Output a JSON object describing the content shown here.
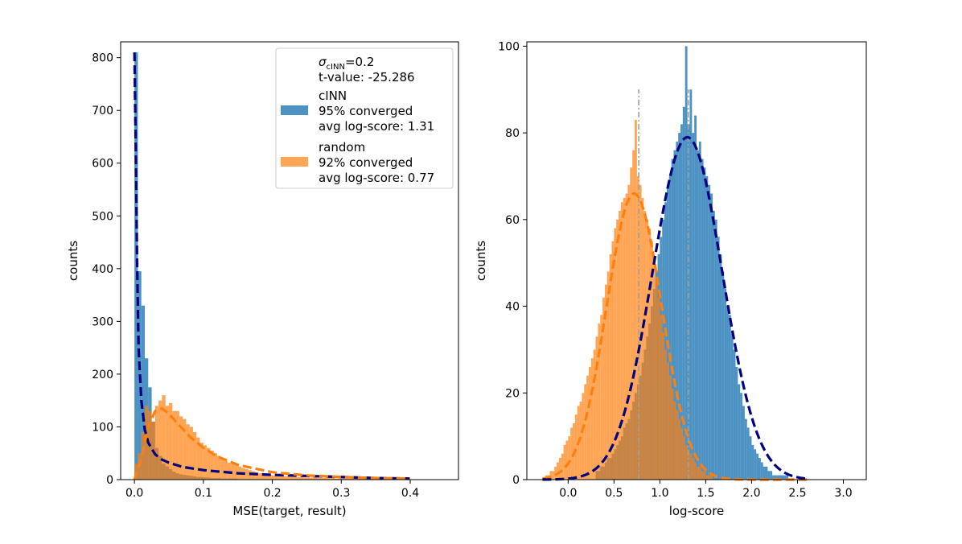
{
  "chart_data": [
    {
      "type": "histogram",
      "xlabel": "MSE(target, result)",
      "ylabel": "counts",
      "xlim": [
        -0.02,
        0.47
      ],
      "ylim": [
        0,
        830
      ],
      "xticks": [
        0.0,
        0.1,
        0.2,
        0.3,
        0.4
      ],
      "xtick_labels": [
        "0.0",
        "0.1",
        "0.2",
        "0.3",
        "0.4"
      ],
      "yticks": [
        0,
        100,
        200,
        300,
        400,
        500,
        600,
        700,
        800
      ],
      "ytick_labels": [
        "0",
        "100",
        "200",
        "300",
        "400",
        "500",
        "600",
        "700",
        "800"
      ],
      "legend": {
        "position": "top-right",
        "sigma_label": "σ",
        "sigma_sub": "cINN",
        "sigma_value": "=0.2",
        "t_value": "t-value: -25.286",
        "entries": [
          {
            "name": "cINN",
            "line2": "95% converged",
            "line3": "avg log-score: 1.31",
            "color": "#1f77b4"
          },
          {
            "name": "random",
            "line2": "92% converged",
            "line3": "avg log-score: 0.77",
            "color": "#ff7f0e"
          }
        ]
      },
      "series": [
        {
          "name": "cINN",
          "color": "#1f77b4",
          "bin_width": 0.005,
          "bin_start": 0.0,
          "counts": [
            810,
            395,
            330,
            230,
            175,
            110,
            60,
            45,
            30,
            25,
            20,
            15,
            12,
            10,
            9,
            8,
            7,
            6,
            5,
            5,
            4,
            4,
            3,
            3,
            3,
            2,
            2,
            2,
            2,
            2,
            1,
            1,
            1,
            1,
            1,
            1,
            1,
            1,
            1,
            1,
            1,
            1,
            1,
            1,
            1,
            1,
            1,
            1,
            1,
            1,
            1,
            1,
            1,
            1,
            1,
            1,
            1,
            1,
            1,
            1,
            1,
            1,
            1,
            1,
            1,
            1,
            1,
            1,
            1,
            1,
            1,
            1,
            1,
            1,
            1,
            1,
            1,
            1,
            1,
            1
          ]
        },
        {
          "name": "random",
          "color": "#ff7f0e",
          "bin_width": 0.005,
          "bin_start": 0.0,
          "counts": [
            30,
            50,
            90,
            140,
            130,
            110,
            140,
            150,
            160,
            140,
            145,
            130,
            130,
            120,
            115,
            105,
            100,
            90,
            80,
            70,
            65,
            60,
            55,
            50,
            45,
            40,
            35,
            32,
            30,
            28,
            25,
            22,
            20,
            18,
            16,
            14,
            12,
            11,
            10,
            9,
            8,
            8,
            7,
            7,
            6,
            6,
            5,
            5,
            5,
            4,
            4,
            4,
            4,
            3,
            3,
            3,
            3,
            3,
            2,
            2,
            2,
            2,
            2,
            2,
            2,
            2,
            2,
            2,
            1,
            1,
            1,
            1,
            1,
            1,
            1,
            1,
            1,
            1,
            1,
            1
          ]
        }
      ],
      "fits": [
        {
          "name": "cINN fit",
          "color": "#000080",
          "x": [
            0.0,
            0.002,
            0.004,
            0.006,
            0.01,
            0.015,
            0.02,
            0.03,
            0.04,
            0.05,
            0.07,
            0.1,
            0.15,
            0.2,
            0.25,
            0.3,
            0.35,
            0.4
          ],
          "y": [
            810,
            620,
            400,
            250,
            150,
            95,
            70,
            48,
            38,
            32,
            24,
            18,
            12,
            9,
            7,
            5,
            3,
            2
          ]
        },
        {
          "name": "random fit",
          "color": "#ff7f0e",
          "x": [
            0.0,
            0.01,
            0.02,
            0.03,
            0.04,
            0.05,
            0.06,
            0.08,
            0.1,
            0.12,
            0.15,
            0.2,
            0.25,
            0.3,
            0.35,
            0.4
          ],
          "y": [
            0,
            40,
            100,
            130,
            135,
            125,
            110,
            82,
            60,
            44,
            28,
            14,
            8,
            5,
            3,
            2
          ]
        }
      ]
    },
    {
      "type": "histogram",
      "xlabel": "log-score",
      "ylabel": "counts",
      "xlim": [
        -0.45,
        3.25
      ],
      "ylim": [
        0,
        101
      ],
      "xticks": [
        0.0,
        0.5,
        1.0,
        1.5,
        2.0,
        2.5,
        3.0
      ],
      "xtick_labels": [
        "0.0",
        "0.5",
        "1.0",
        "1.5",
        "2.0",
        "2.5",
        "3.0"
      ],
      "yticks": [
        0,
        20,
        40,
        60,
        80,
        100
      ],
      "ytick_labels": [
        "0",
        "20",
        "40",
        "60",
        "80",
        "100"
      ],
      "mean_lines": [
        {
          "name": "random mean",
          "x": 0.77,
          "ymax": 90
        },
        {
          "name": "cINN mean",
          "x": 1.31,
          "ymax": 90
        }
      ],
      "series": [
        {
          "name": "cINN",
          "color": "#1f77b4",
          "bin_width": 0.025,
          "bin_start": 0.3,
          "counts": [
            2,
            2,
            3,
            3,
            4,
            5,
            5,
            6,
            7,
            8,
            9,
            10,
            12,
            13,
            14,
            16,
            18,
            20,
            22,
            24,
            27,
            30,
            33,
            36,
            40,
            44,
            48,
            52,
            56,
            60,
            64,
            68,
            70,
            74,
            76,
            78,
            80,
            82,
            86,
            100,
            82,
            90,
            80,
            84,
            76,
            78,
            74,
            72,
            70,
            68,
            66,
            62,
            60,
            56,
            52,
            48,
            44,
            40,
            38,
            34,
            30,
            26,
            22,
            20,
            17,
            14,
            12,
            10,
            8,
            7,
            6,
            5,
            4,
            3,
            3,
            2,
            2,
            1,
            1,
            1,
            1,
            1,
            1,
            1
          ]
        },
        {
          "name": "random",
          "color": "#ff7f0e",
          "bin_width": 0.025,
          "bin_start": -0.25,
          "counts": [
            1,
            1,
            2,
            2,
            3,
            4,
            5,
            6,
            8,
            9,
            10,
            12,
            13,
            15,
            17,
            18,
            20,
            22,
            24,
            26,
            28,
            30,
            33,
            36,
            38,
            42,
            45,
            48,
            52,
            55,
            58,
            60,
            62,
            64,
            65,
            66,
            68,
            72,
            76,
            83,
            70,
            68,
            65,
            62,
            60,
            58,
            55,
            50,
            46,
            42,
            38,
            34,
            30,
            27,
            24,
            21,
            18,
            16,
            14,
            12,
            10,
            8,
            7,
            6,
            5,
            4,
            3,
            3,
            2,
            2,
            1,
            1,
            1
          ]
        }
      ],
      "fits": [
        {
          "name": "random fit",
          "color": "#ff7f0e",
          "mean": 0.72,
          "sd": 0.3,
          "peak": 66
        },
        {
          "name": "cINN fit",
          "color": "#000080",
          "mean": 1.3,
          "sd": 0.38,
          "peak": 79
        }
      ]
    }
  ]
}
